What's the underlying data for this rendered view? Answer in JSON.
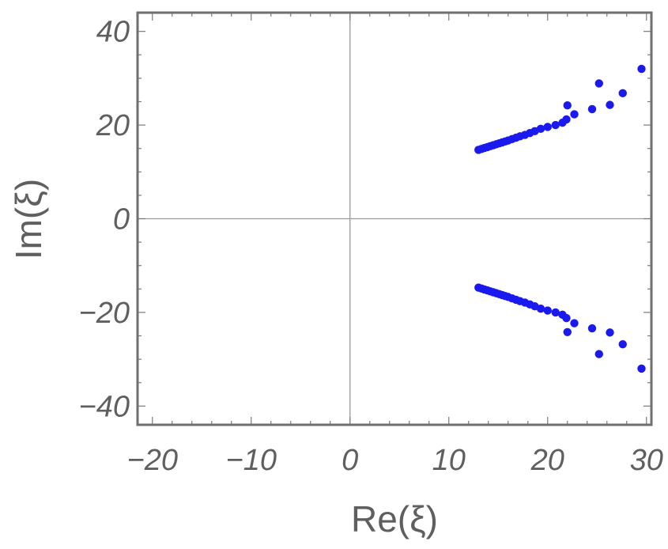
{
  "chart_data": {
    "type": "scatter",
    "title": "",
    "xlabel": "Re(ξ)",
    "ylabel": "Im(ξ)",
    "xlim": [
      -21.5,
      30.5
    ],
    "ylim": [
      -44,
      44
    ],
    "xticks": [
      -20,
      -10,
      0,
      10,
      20,
      30
    ],
    "yticks": [
      -40,
      -20,
      0,
      20,
      40
    ],
    "xtick_labels": [
      "−20",
      "−10",
      "0",
      "10",
      "20",
      "30"
    ],
    "ytick_labels": [
      "−40",
      "−20",
      "0",
      "20",
      "40"
    ],
    "grid": false,
    "axes_through_origin": true,
    "marker_color": "#1a1aee",
    "series": [
      {
        "x": [
          13.0,
          13.3,
          13.6,
          13.9,
          14.2,
          14.5,
          14.8,
          15.1,
          15.4,
          15.7,
          16.0,
          16.4,
          16.8,
          17.2,
          17.7,
          18.2,
          18.7,
          19.3,
          20.0,
          20.8,
          21.5,
          21.9,
          22.0,
          22.7,
          24.5,
          25.2,
          26.3,
          27.6,
          29.5,
          13.0,
          13.3,
          13.6,
          13.9,
          14.2,
          14.5,
          14.8,
          15.1,
          15.4,
          15.7,
          16.0,
          16.4,
          16.8,
          17.2,
          17.7,
          18.2,
          18.7,
          19.3,
          20.0,
          20.8,
          21.5,
          21.9,
          22.0,
          22.7,
          24.5,
          25.2,
          26.3,
          27.6,
          29.5
        ],
        "y": [
          14.7,
          14.9,
          15.1,
          15.3,
          15.5,
          15.7,
          15.9,
          16.1,
          16.3,
          16.5,
          16.7,
          17.0,
          17.3,
          17.6,
          17.9,
          18.3,
          18.7,
          19.2,
          19.6,
          20.0,
          20.5,
          21.2,
          24.2,
          22.3,
          23.4,
          28.9,
          24.3,
          26.8,
          32.0,
          -14.7,
          -14.9,
          -15.1,
          -15.3,
          -15.5,
          -15.7,
          -15.9,
          -16.1,
          -16.3,
          -16.5,
          -16.7,
          -17.0,
          -17.3,
          -17.6,
          -17.9,
          -18.3,
          -18.7,
          -19.2,
          -19.6,
          -20.0,
          -20.5,
          -21.2,
          -24.2,
          -22.3,
          -23.4,
          -28.9,
          -24.3,
          -26.8,
          -32.0
        ]
      }
    ]
  }
}
